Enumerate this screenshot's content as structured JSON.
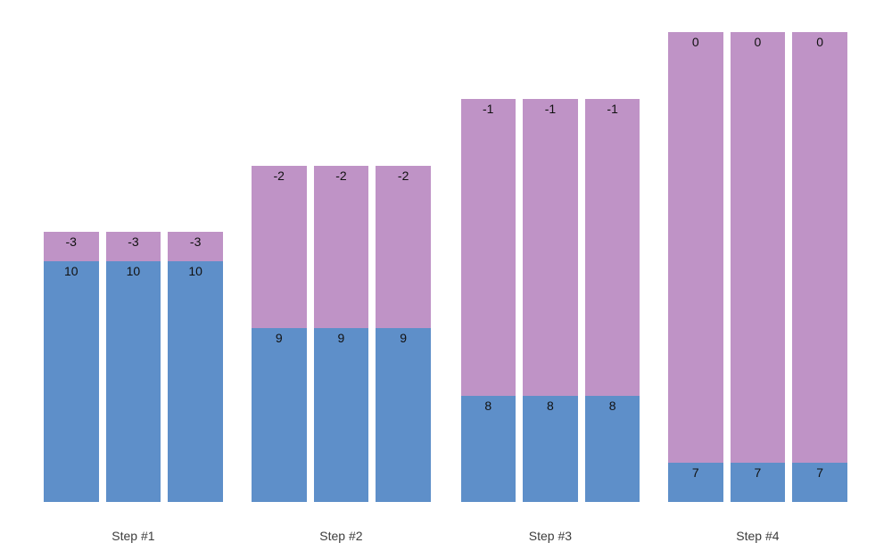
{
  "chart_data": {
    "type": "bar",
    "variant": "grouped-stacked-columns",
    "title": "",
    "xlabel": "",
    "ylabel": "",
    "categories": [
      "Step #1",
      "Step #2",
      "Step #3",
      "Step #4"
    ],
    "bars_per_group": 3,
    "series": [
      {
        "name": "blue-bottom-segment",
        "color": "#5e8fc9",
        "labels": [
          "10",
          "9",
          "8",
          "7"
        ]
      },
      {
        "name": "purple-top-segment",
        "color": "#bf93c6",
        "labels": [
          "-3",
          "-2",
          "-1",
          "0"
        ]
      }
    ],
    "note": "Each step shows 3 identical stacked bars; value labels are printed at the top of each segment. Total stack heights grow by one equal unit per step (ratio 4:5:6:7) while the blue segment shrinks by the same unit each step.",
    "in_bar_label_color": "#111111",
    "category_label_color": "#3d3d3d",
    "background_color": "#ffffff",
    "axes": {
      "x_axis_visible": false,
      "y_axis_visible": false,
      "grid": false,
      "legend": false
    },
    "pixel_geometry": {
      "chart_bottom_y": 563,
      "stack_top_y": [
        260,
        186,
        111,
        36
      ],
      "blue_purple_boundary_y": [
        293,
        368,
        444,
        519
      ],
      "group_left_x": [
        49,
        282,
        516.5,
        749
      ],
      "bar_width": 61.5,
      "bar_gap_within_group": 8.2,
      "category_label_center_y": 601
    }
  }
}
